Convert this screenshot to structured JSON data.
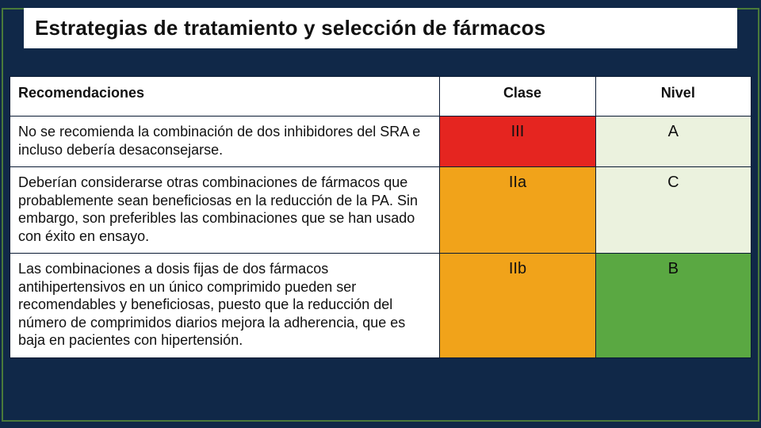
{
  "title": "Estrategias de tratamiento y selección de fármacos",
  "columns": {
    "recommendations": "Recomendaciones",
    "class": "Clase",
    "level": "Nivel"
  },
  "rows": [
    {
      "rec": "No se recomienda la combinación de dos inhibidores del SRA e incluso debería desaconsejarse.",
      "class": "III",
      "level": "A",
      "class_color": "#e52520",
      "level_color": "#ebf2de"
    },
    {
      "rec": "Deberían considerarse otras combinaciones de fármacos que probablemente sean beneficiosas en la reducción de la PA. Sin embargo, son preferibles las combinaciones que se han usado con éxito en ensayo.",
      "class": "IIa",
      "level": "C",
      "class_color": "#f1a31a",
      "level_color": "#ebf2de"
    },
    {
      "rec": "Las combinaciones a dosis fijas de dos fármacos antihipertensivos en un único comprimido pueden ser recomendables y beneficiosas, puesto que la reducción del número de comprimidos diarios mejora la adherencia, que es baja en pacientes con hipertensión.",
      "class": "IIb",
      "level": "B",
      "class_color": "#f1a31a",
      "level_color": "#5aa842"
    }
  ],
  "style": {
    "page_bg": "#102848",
    "frame_border": "#4a7a3a",
    "cell_border": "#0a1a33",
    "header_bg": "#ffffff",
    "rec_bg": "#ffffff",
    "title_fontsize": 26,
    "header_fontsize": 18,
    "body_fontsize": 18,
    "value_fontsize": 20,
    "col_widths_pct": [
      58,
      21,
      21
    ]
  },
  "type": "table"
}
